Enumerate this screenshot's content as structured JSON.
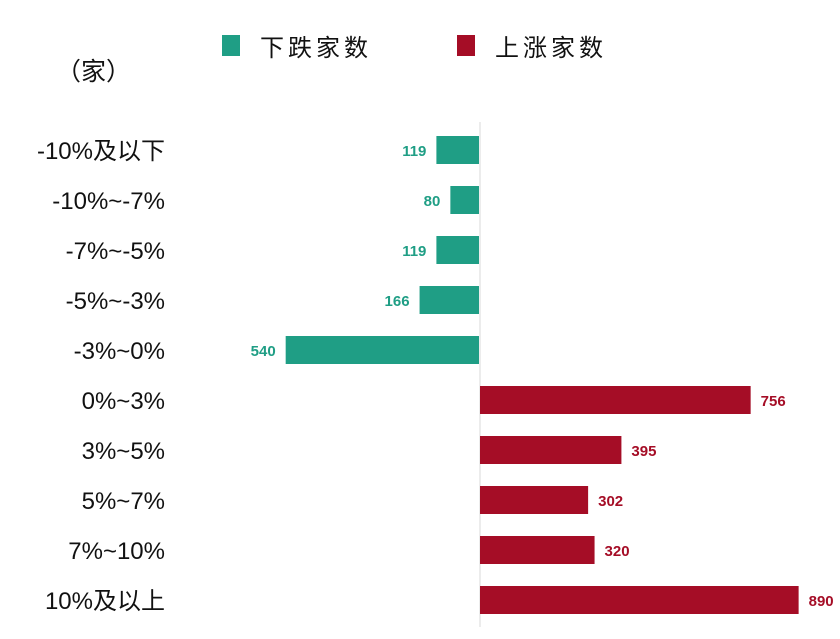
{
  "chart_data": {
    "type": "bar",
    "orientation": "horizontal",
    "title": "",
    "unit": "（家）",
    "categories": [
      "-10%及以下",
      "-10%~-7%",
      "-7%~-5%",
      "-5%~-3%",
      "-3%~0%",
      "0%~3%",
      "3%~5%",
      "5%~7%",
      "7%~10%",
      "10%及以上"
    ],
    "series": [
      {
        "name": "下跌家数",
        "color": "#1f9e85",
        "direction": "left",
        "values": [
          119,
          80,
          119,
          166,
          540,
          null,
          null,
          null,
          null,
          null
        ]
      },
      {
        "name": "上涨家数",
        "color": "#a50d26",
        "direction": "right",
        "values": [
          null,
          null,
          null,
          null,
          null,
          756,
          395,
          302,
          320,
          890
        ]
      }
    ],
    "legend_position": "top",
    "grid": false,
    "axis_color": "#d9d9d9"
  }
}
